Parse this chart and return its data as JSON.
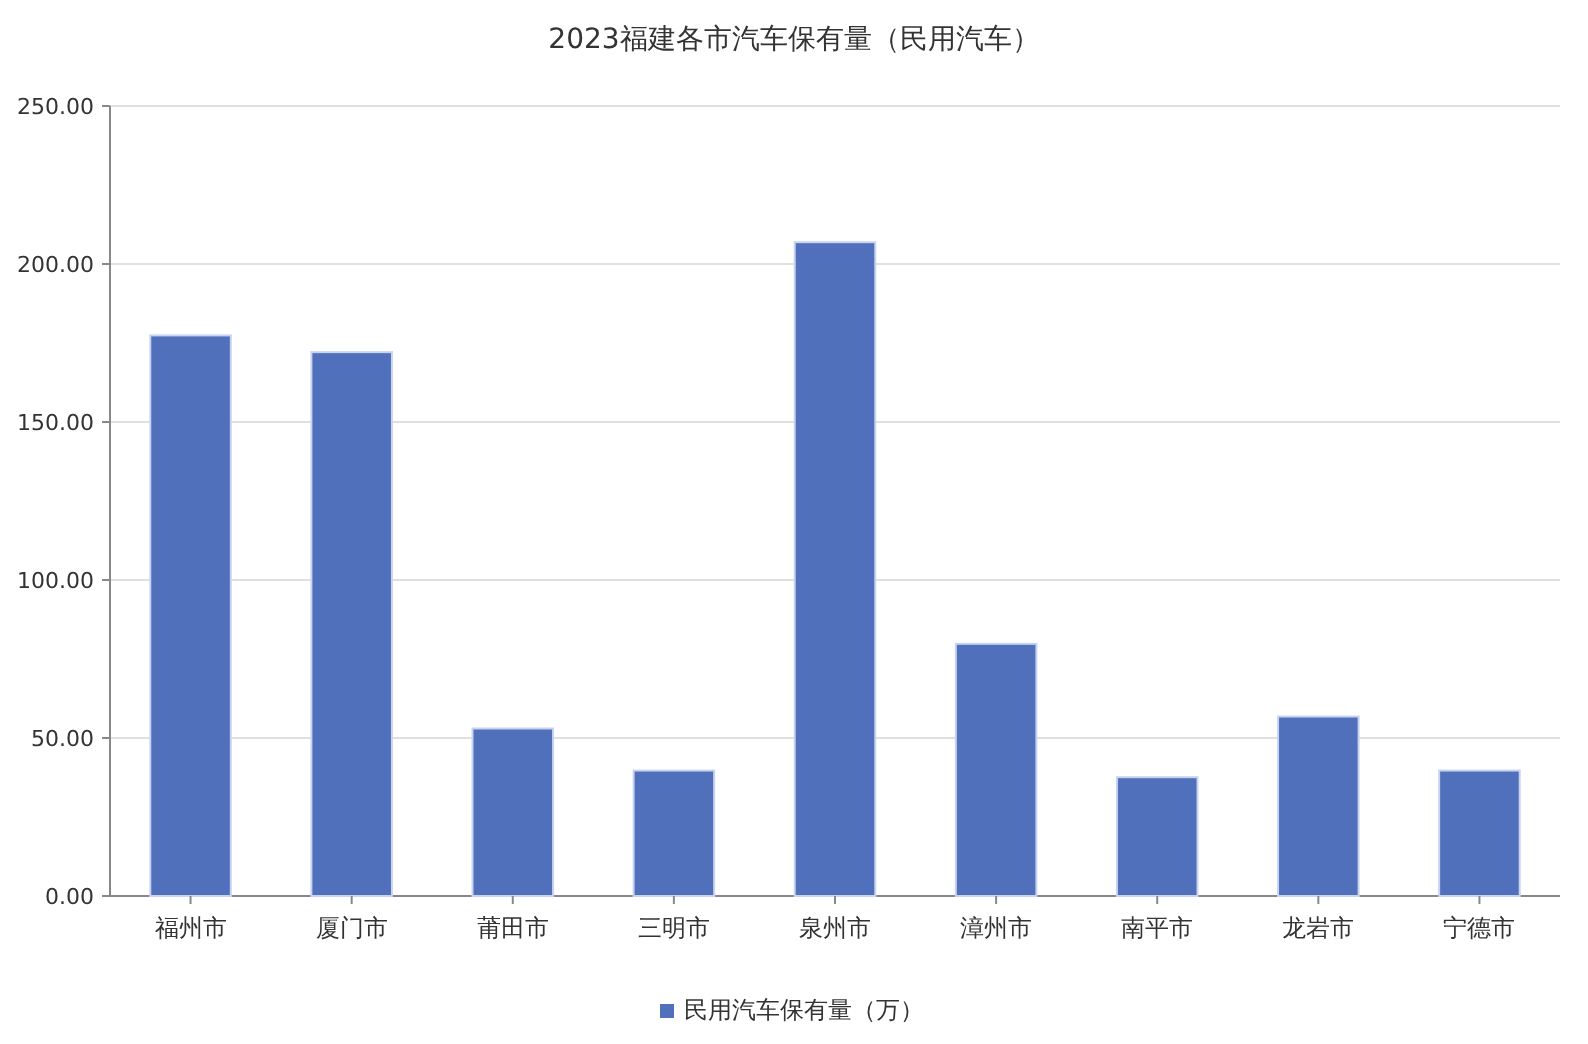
{
  "chart_data": {
    "type": "bar",
    "title": "2023福建各市汽车保有量（民用汽车）",
    "categories": [
      "福州市",
      "厦门市",
      "莆田市",
      "三明市",
      "泉州市",
      "漳州市",
      "南平市",
      "龙岩市",
      "宁德市"
    ],
    "series": [
      {
        "name": "民用汽车保有量（万）",
        "color": "#5070bb",
        "values": [
          177.4,
          172.1,
          53.0,
          39.7,
          206.9,
          79.8,
          37.6,
          56.8,
          39.7
        ]
      }
    ],
    "ylim": [
      0,
      250
    ],
    "yticks": [
      {
        "value": 0,
        "label": "0.00"
      },
      {
        "value": 50,
        "label": "50.00"
      },
      {
        "value": 100,
        "label": "100.00"
      },
      {
        "value": 150,
        "label": "150.00"
      },
      {
        "value": 200,
        "label": "200.00"
      },
      {
        "value": 250,
        "label": "250.00"
      }
    ],
    "grid": "y",
    "legend": "bottom"
  }
}
